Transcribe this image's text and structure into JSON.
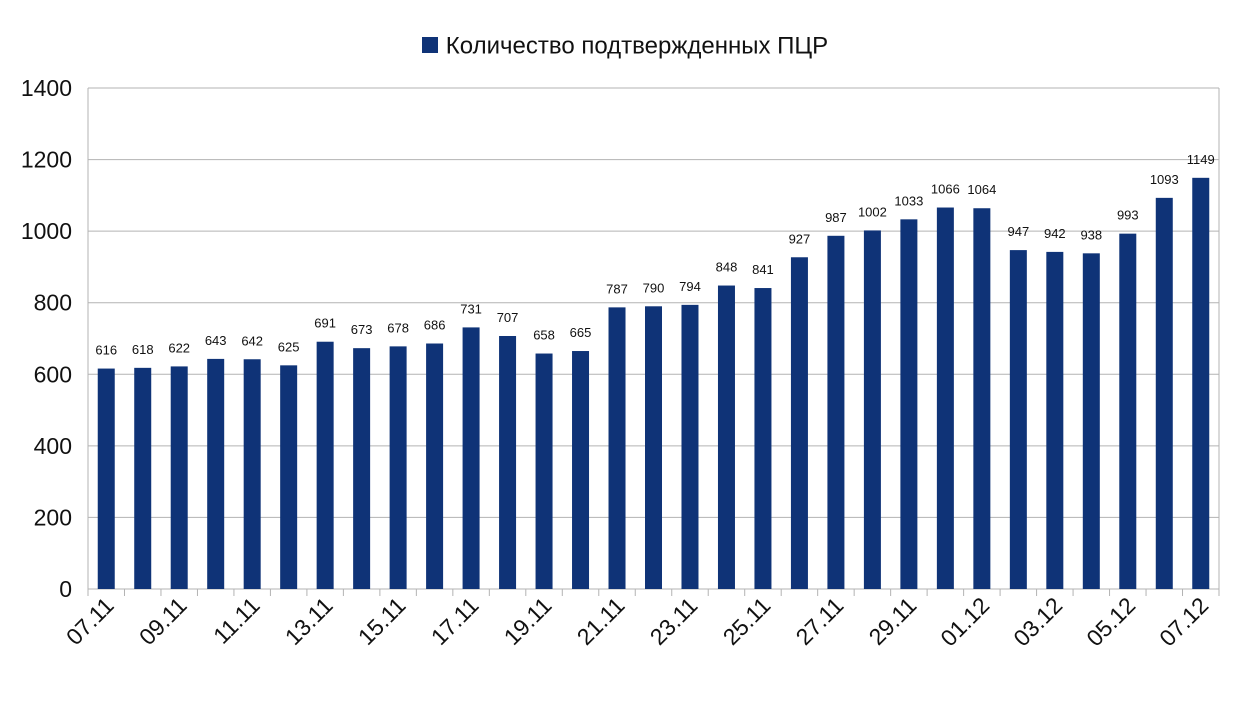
{
  "chart_data": {
    "type": "bar",
    "legend_position": "top",
    "grid": true,
    "ylim": [
      0,
      1400
    ],
    "yticks": [
      0,
      200,
      400,
      600,
      800,
      1000,
      1200,
      1400
    ],
    "categories": [
      "07.11",
      "08.11",
      "09.11",
      "10.11",
      "11.11",
      "12.11",
      "13.11",
      "14.11",
      "15.11",
      "16.11",
      "17.11",
      "18.11",
      "19.11",
      "20.11",
      "21.11",
      "22.11",
      "23.11",
      "24.11",
      "25.11",
      "26.11",
      "27.11",
      "28.11",
      "29.11",
      "30.11",
      "01.12",
      "02.12",
      "03.12",
      "04.12",
      "05.12",
      "06.12",
      "07.12"
    ],
    "xtick_labels": [
      "07.11",
      "",
      "09.11",
      "",
      "11.11",
      "",
      "13.11",
      "",
      "15.11",
      "",
      "17.11",
      "",
      "19.11",
      "",
      "21.11",
      "",
      "23.11",
      "",
      "25.11",
      "",
      "27.11",
      "",
      "29.11",
      "",
      "01.12",
      "",
      "03.12",
      "",
      "05.12",
      "",
      "07.12"
    ],
    "series": [
      {
        "name": "Количество подтвержденных ПЦР",
        "color": "#0f3377",
        "values": [
          616,
          618,
          622,
          643,
          642,
          625,
          691,
          673,
          678,
          686,
          731,
          707,
          658,
          665,
          787,
          790,
          794,
          848,
          841,
          927,
          987,
          1002,
          1033,
          1066,
          1064,
          947,
          942,
          938,
          993,
          1093,
          1149
        ]
      }
    ]
  }
}
